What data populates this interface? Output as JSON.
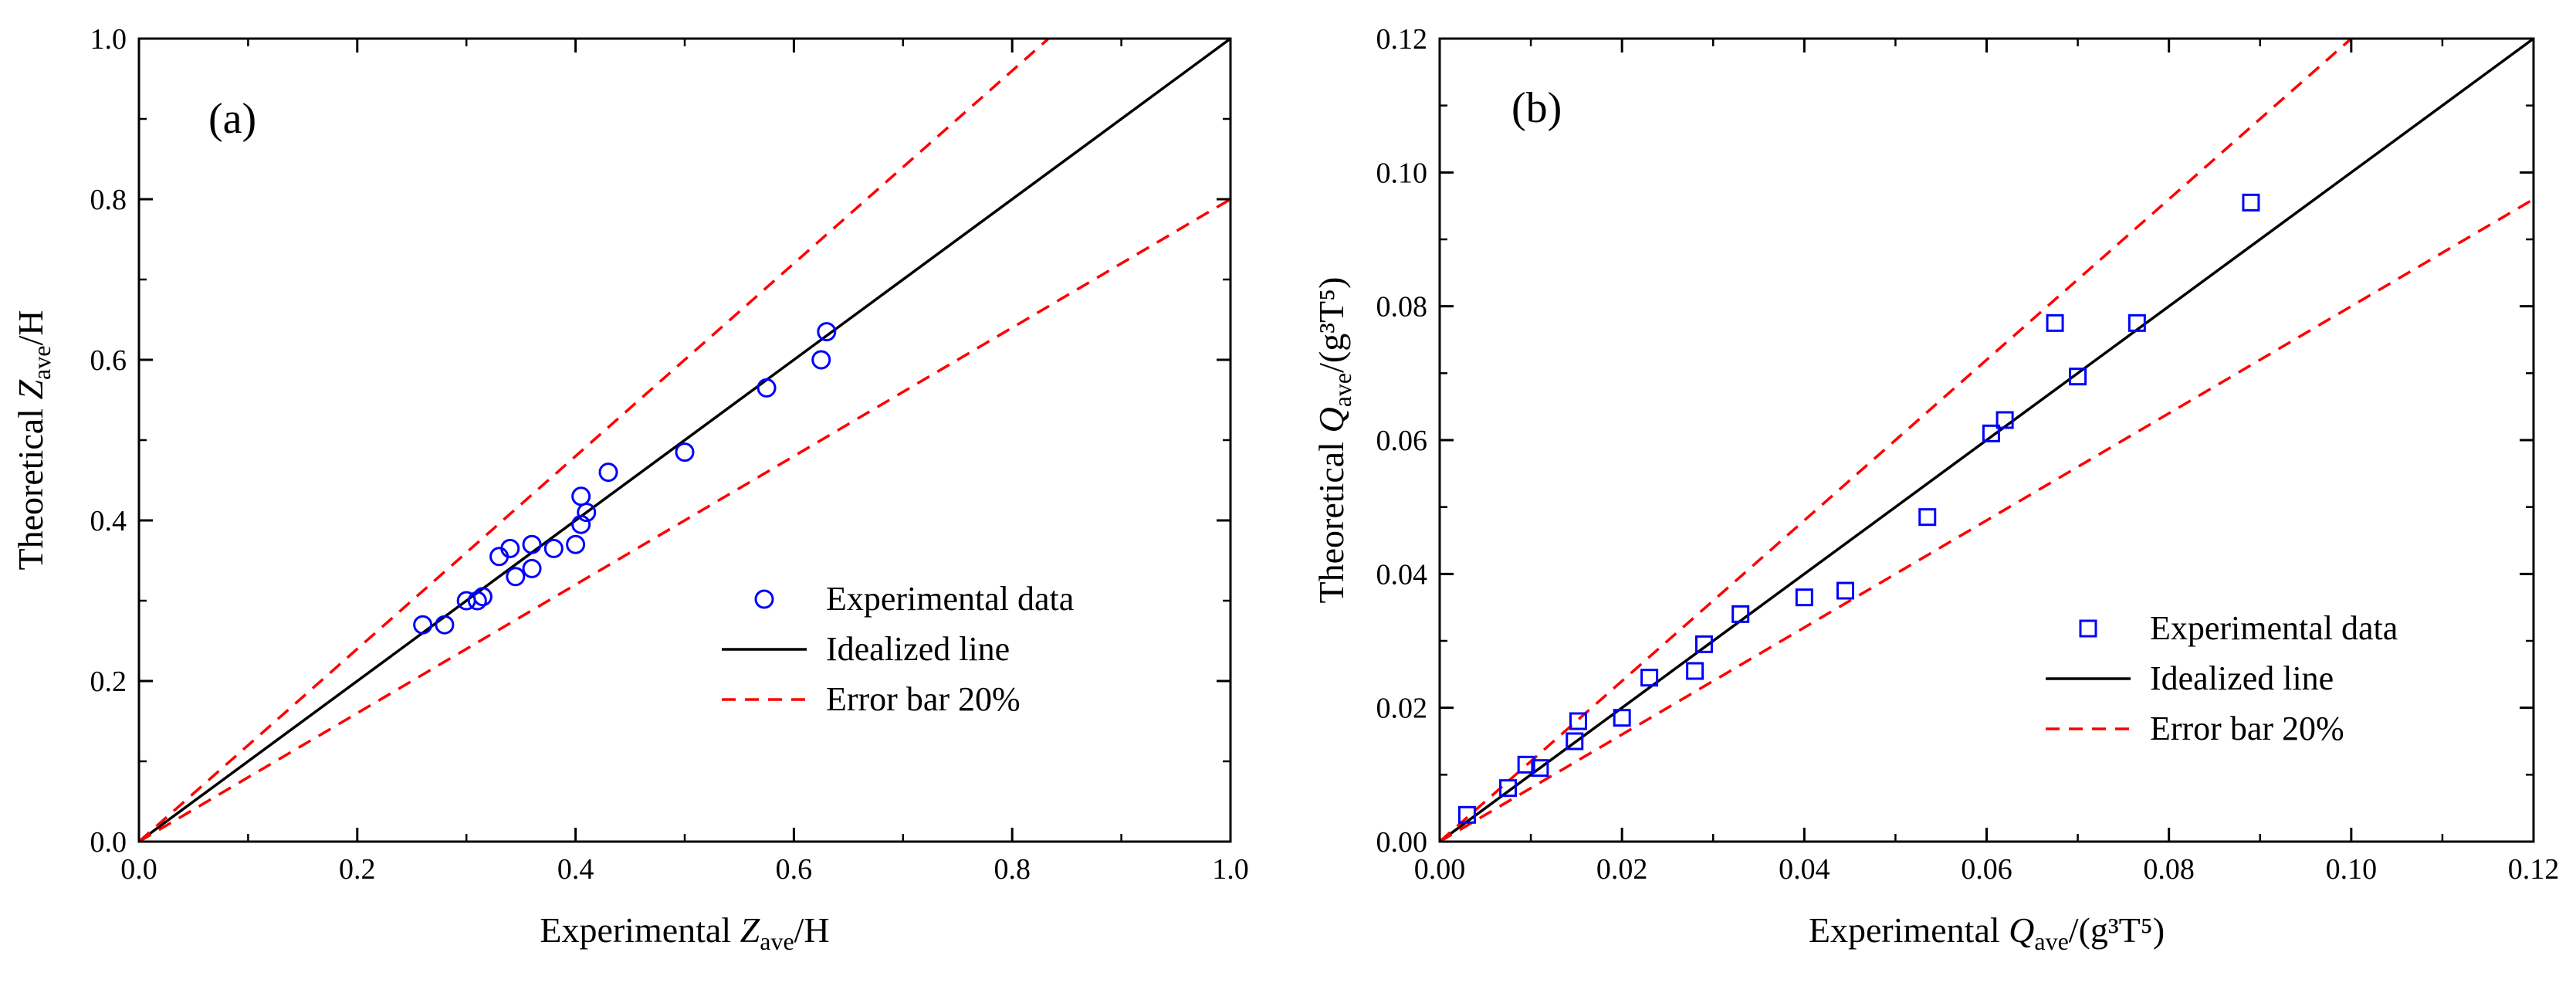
{
  "chart_data": [
    {
      "type": "scatter",
      "panel_label": "(a)",
      "xlabel": {
        "prefix": "Experimental ",
        "var": "Z",
        "sub": "ave",
        "suffix": "/H"
      },
      "ylabel": {
        "prefix": "Theoretical ",
        "var": "Z",
        "sub": "ave",
        "suffix": "/H"
      },
      "xlim": [
        0,
        1.0
      ],
      "ylim": [
        0,
        1.0
      ],
      "x_ticks": [
        "0.0",
        "0.2",
        "0.4",
        "0.6",
        "0.8",
        "1.0"
      ],
      "y_ticks": [
        "0.0",
        "0.2",
        "0.4",
        "0.6",
        "0.8",
        "1.0"
      ],
      "grid": false,
      "legend_position": "bottom-right",
      "series": [
        {
          "name": "Experimental data",
          "kind": "markers",
          "marker": "circle",
          "color": "#0000ff",
          "points": [
            [
              0.26,
              0.27
            ],
            [
              0.28,
              0.27
            ],
            [
              0.3,
              0.3
            ],
            [
              0.31,
              0.3
            ],
            [
              0.315,
              0.305
            ],
            [
              0.33,
              0.355
            ],
            [
              0.34,
              0.365
            ],
            [
              0.345,
              0.33
            ],
            [
              0.36,
              0.34
            ],
            [
              0.36,
              0.37
            ],
            [
              0.38,
              0.365
            ],
            [
              0.4,
              0.37
            ],
            [
              0.405,
              0.395
            ],
            [
              0.405,
              0.43
            ],
            [
              0.41,
              0.41
            ],
            [
              0.43,
              0.46
            ],
            [
              0.5,
              0.485
            ],
            [
              0.575,
              0.565
            ],
            [
              0.625,
              0.6
            ],
            [
              0.63,
              0.635
            ]
          ]
        },
        {
          "name": "Idealized line",
          "kind": "line",
          "slope": 1.0,
          "color": "#000000",
          "dashed": false
        },
        {
          "name": "Error bar 20%",
          "kind": "line",
          "slope": 1.2,
          "color": "#ff0000",
          "dashed": true
        },
        {
          "name": "",
          "kind": "line",
          "slope": 0.8,
          "color": "#ff0000",
          "dashed": true,
          "legend": false
        }
      ]
    },
    {
      "type": "scatter",
      "panel_label": "(b)",
      "xlabel": {
        "prefix": "Experimental ",
        "var": "Q",
        "sub": "ave",
        "suffix": "/(g³T⁵)"
      },
      "ylabel": {
        "prefix": "Theoretical ",
        "var": "Q",
        "sub": "ave",
        "suffix": "/(g³T⁵)"
      },
      "xlim": [
        0,
        0.12
      ],
      "ylim": [
        0,
        0.12
      ],
      "x_ticks": [
        "0.00",
        "0.02",
        "0.04",
        "0.06",
        "0.08",
        "0.10",
        "0.12"
      ],
      "y_ticks": [
        "0.00",
        "0.02",
        "0.04",
        "0.06",
        "0.08",
        "0.10",
        "0.12"
      ],
      "grid": false,
      "legend_position": "bottom-right",
      "series": [
        {
          "name": "Experimental data",
          "kind": "markers",
          "marker": "square",
          "color": "#0000ff",
          "points": [
            [
              0.003,
              0.004
            ],
            [
              0.0075,
              0.008
            ],
            [
              0.0095,
              0.0115
            ],
            [
              0.011,
              0.011
            ],
            [
              0.0148,
              0.015
            ],
            [
              0.0152,
              0.018
            ],
            [
              0.02,
              0.0185
            ],
            [
              0.023,
              0.0245
            ],
            [
              0.028,
              0.0255
            ],
            [
              0.029,
              0.0295
            ],
            [
              0.033,
              0.034
            ],
            [
              0.04,
              0.0365
            ],
            [
              0.0445,
              0.0375
            ],
            [
              0.0535,
              0.0485
            ],
            [
              0.0605,
              0.061
            ],
            [
              0.062,
              0.063
            ],
            [
              0.0675,
              0.0775
            ],
            [
              0.07,
              0.0695
            ],
            [
              0.0765,
              0.0775
            ],
            [
              0.089,
              0.0955
            ]
          ]
        },
        {
          "name": "Idealized line",
          "kind": "line",
          "slope": 1.0,
          "color": "#000000",
          "dashed": false
        },
        {
          "name": "Error bar 20%",
          "kind": "line",
          "slope": 1.2,
          "color": "#ff0000",
          "dashed": true
        },
        {
          "name": "",
          "kind": "line",
          "slope": 0.8,
          "color": "#ff0000",
          "dashed": true,
          "legend": false
        }
      ]
    }
  ]
}
